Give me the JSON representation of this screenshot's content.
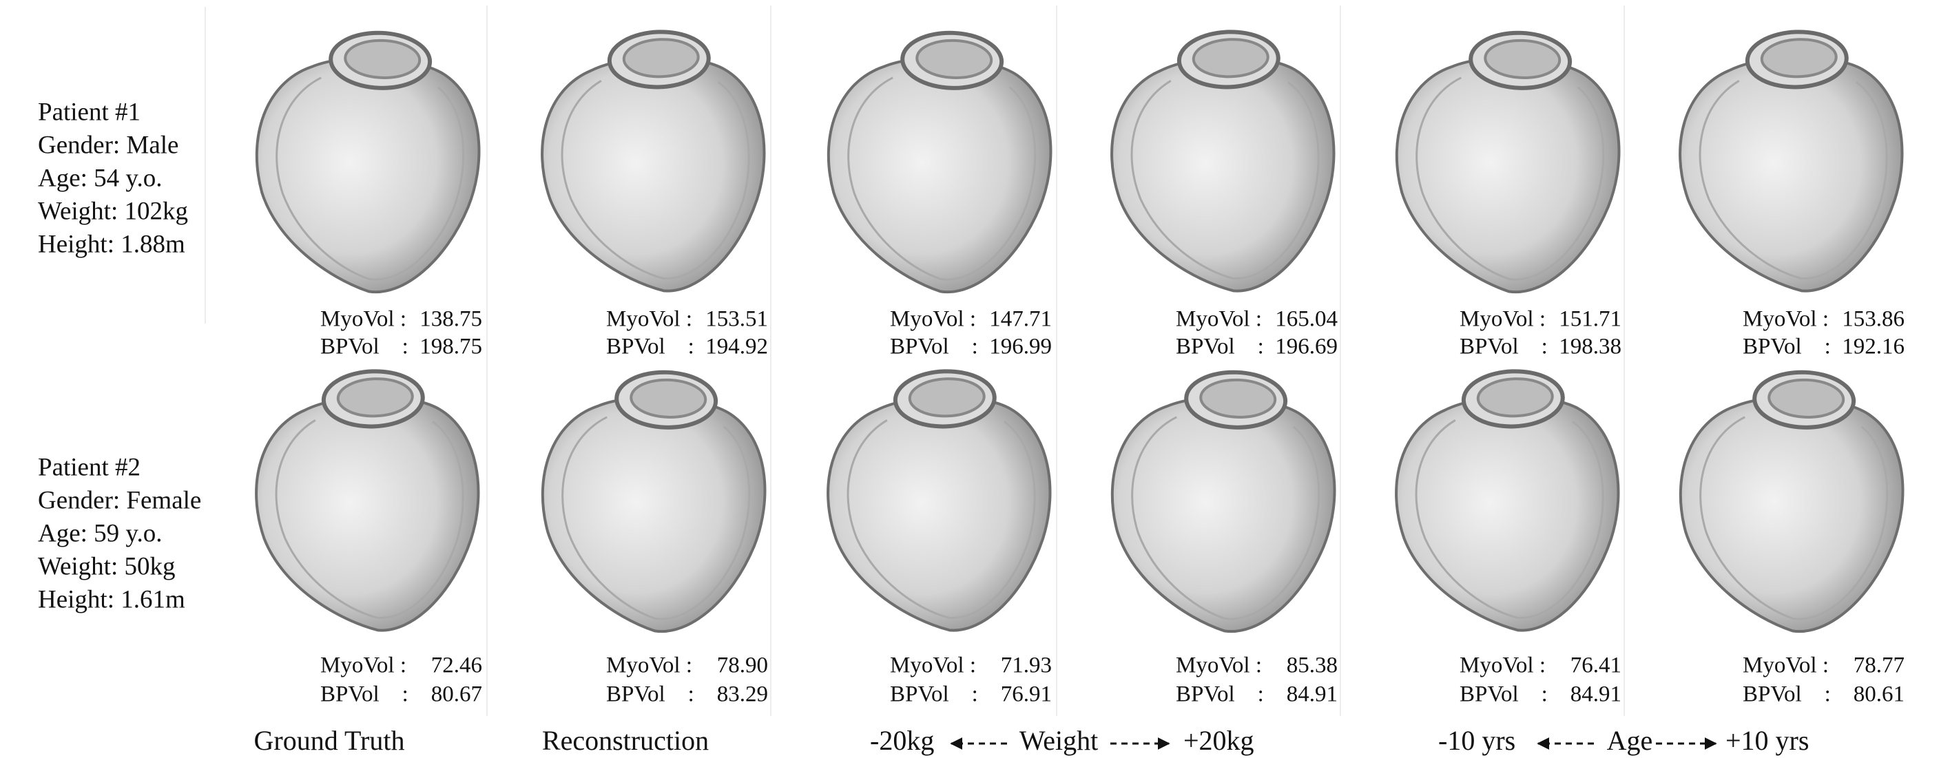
{
  "patients": [
    {
      "info": [
        "Patient #1",
        "Gender: Male",
        "Age: 54 y.o.",
        "Weight: 102kg",
        "Height: 1.88m"
      ],
      "volumes": [
        {
          "myovol": "138.75",
          "bpvol": "198.75"
        },
        {
          "myovol": "153.51",
          "bpvol": "194.92"
        },
        {
          "myovol": "147.71",
          "bpvol": "196.99"
        },
        {
          "myovol": "165.04",
          "bpvol": "196.69"
        },
        {
          "myovol": "151.71",
          "bpvol": "198.38"
        },
        {
          "myovol": "153.86",
          "bpvol": "192.16"
        }
      ]
    },
    {
      "info": [
        "Patient #2",
        "Gender: Female",
        "Age: 59 y.o.",
        "Weight: 50kg",
        "Height: 1.61m"
      ],
      "volumes": [
        {
          "myovol": "72.46",
          "bpvol": "80.67"
        },
        {
          "myovol": "78.90",
          "bpvol": "83.29"
        },
        {
          "myovol": "71.93",
          "bpvol": "76.91"
        },
        {
          "myovol": "85.38",
          "bpvol": "84.91"
        },
        {
          "myovol": "76.41",
          "bpvol": "84.91"
        },
        {
          "myovol": "78.77",
          "bpvol": "80.61"
        }
      ]
    }
  ],
  "volume_labels": {
    "myovol": "MyoVol :",
    "bpvol": "BPVol    :"
  },
  "column_labels": {
    "ground_truth": "Ground Truth",
    "reconstruction": "Reconstruction",
    "weight": {
      "minus": "-20kg",
      "name": "Weight",
      "plus": "+20kg"
    },
    "age": {
      "minus": "-10 yrs",
      "name": "Age",
      "plus": "+10 yrs"
    }
  }
}
